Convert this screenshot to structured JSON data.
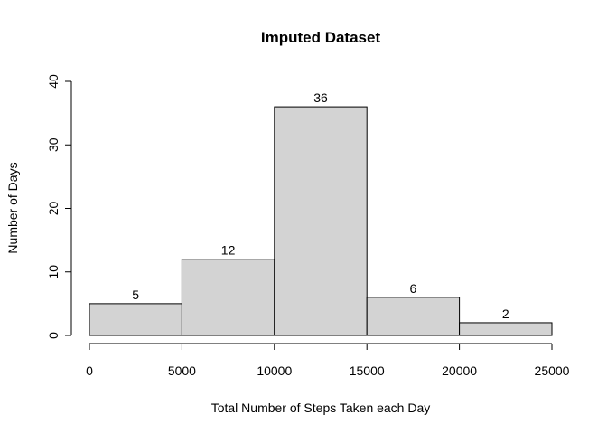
{
  "chart_data": {
    "type": "bar",
    "title": "Imputed Dataset",
    "xlabel": "Total Number of Steps Taken each Day",
    "ylabel": "Number of Days",
    "bins": [
      {
        "start": 0,
        "end": 5000,
        "value": 5
      },
      {
        "start": 5000,
        "end": 10000,
        "value": 12
      },
      {
        "start": 10000,
        "end": 15000,
        "value": 36
      },
      {
        "start": 15000,
        "end": 20000,
        "value": 6
      },
      {
        "start": 20000,
        "end": 25000,
        "value": 2
      }
    ],
    "data_labels": [
      "5",
      "12",
      "36",
      "6",
      "2"
    ],
    "xlim": [
      0,
      25000
    ],
    "ylim": [
      0,
      40
    ],
    "x_ticks": [
      0,
      5000,
      10000,
      15000,
      20000,
      25000
    ],
    "x_tick_labels": [
      "0",
      "5000",
      "10000",
      "15000",
      "20000",
      "25000"
    ],
    "y_ticks": [
      0,
      10,
      20,
      30,
      40
    ],
    "y_tick_labels": [
      "0",
      "10",
      "20",
      "30",
      "40"
    ],
    "bar_color": "#d3d3d3",
    "grid": false,
    "legend": "none"
  }
}
